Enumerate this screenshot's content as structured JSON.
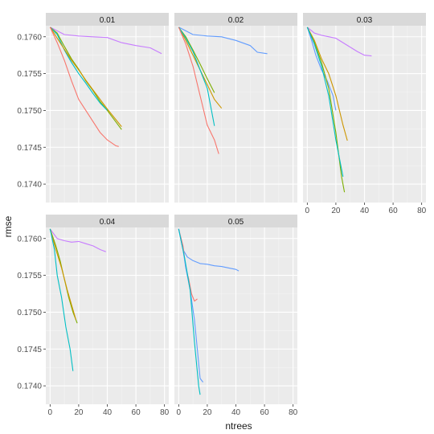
{
  "chart_data": {
    "type": "line",
    "xlabel": "ntrees",
    "ylabel": "rmse",
    "xlim": [
      -3,
      83
    ],
    "ylim": [
      0.17375,
      0.17615
    ],
    "xticks": [
      0,
      20,
      40,
      60,
      80
    ],
    "yticks": [
      0.174,
      0.1745,
      0.175,
      0.1755,
      0.176
    ],
    "ytick_labels": [
      "0.1740",
      "0.1745",
      "0.1750",
      "0.1755",
      "0.1760"
    ],
    "grid": true,
    "legend": "none",
    "facets": [
      {
        "title": "0.01",
        "series": [
          {
            "color": "#C77CFF",
            "points": [
              [
                0,
                0.17613
              ],
              [
                10,
                0.17603
              ],
              [
                20,
                0.17601
              ],
              [
                30,
                0.176
              ],
              [
                40,
                0.17599
              ],
              [
                50,
                0.17592
              ],
              [
                60,
                0.17588
              ],
              [
                70,
                0.17585
              ],
              [
                78,
                0.17577
              ]
            ]
          },
          {
            "color": "#7CAE00",
            "points": [
              [
                0,
                0.17613
              ],
              [
                5,
                0.17605
              ],
              [
                10,
                0.17587
              ],
              [
                15,
                0.1757
              ],
              [
                20,
                0.17556
              ],
              [
                25,
                0.1754
              ],
              [
                30,
                0.17527
              ],
              [
                35,
                0.17512
              ],
              [
                40,
                0.175
              ],
              [
                45,
                0.17487
              ],
              [
                50,
                0.17474
              ]
            ]
          },
          {
            "color": "#00BFC4",
            "points": [
              [
                0,
                0.17613
              ],
              [
                5,
                0.17603
              ],
              [
                10,
                0.17582
              ],
              [
                15,
                0.17565
              ],
              [
                20,
                0.1755
              ],
              [
                25,
                0.17537
              ],
              [
                30,
                0.17523
              ],
              [
                35,
                0.1751
              ],
              [
                40,
                0.175
              ]
            ]
          },
          {
            "color": "#CD9600",
            "points": [
              [
                0,
                0.17613
              ],
              [
                5,
                0.17598
              ],
              [
                10,
                0.17583
              ],
              [
                15,
                0.17568
              ],
              [
                20,
                0.17555
              ],
              [
                25,
                0.17541
              ],
              [
                30,
                0.17528
              ],
              [
                35,
                0.17515
              ],
              [
                40,
                0.17502
              ],
              [
                45,
                0.1749
              ],
              [
                50,
                0.17478
              ]
            ]
          },
          {
            "color": "#F8766D",
            "points": [
              [
                0,
                0.17613
              ],
              [
                5,
                0.17592
              ],
              [
                10,
                0.17568
              ],
              [
                15,
                0.1754
              ],
              [
                20,
                0.17515
              ],
              [
                25,
                0.175
              ],
              [
                30,
                0.17485
              ],
              [
                35,
                0.1747
              ],
              [
                40,
                0.1746
              ],
              [
                46,
                0.17452
              ],
              [
                48,
                0.17451
              ]
            ]
          }
        ]
      },
      {
        "title": "0.02",
        "series": [
          {
            "color": "#619CFF",
            "points": [
              [
                0,
                0.17613
              ],
              [
                10,
                0.17603
              ],
              [
                20,
                0.17601
              ],
              [
                30,
                0.176
              ],
              [
                40,
                0.17595
              ],
              [
                50,
                0.17588
              ],
              [
                55,
                0.17579
              ],
              [
                62,
                0.17577
              ]
            ]
          },
          {
            "color": "#CD9600",
            "points": [
              [
                0,
                0.17613
              ],
              [
                5,
                0.17595
              ],
              [
                10,
                0.17575
              ],
              [
                15,
                0.17555
              ],
              [
                20,
                0.17535
              ],
              [
                25,
                0.17515
              ],
              [
                30,
                0.17503
              ]
            ]
          },
          {
            "color": "#7CAE00",
            "points": [
              [
                0,
                0.17613
              ],
              [
                5,
                0.176
              ],
              [
                10,
                0.17582
              ],
              [
                15,
                0.17563
              ],
              [
                20,
                0.17543
              ],
              [
                25,
                0.17524
              ]
            ]
          },
          {
            "color": "#00BFC4",
            "points": [
              [
                0,
                0.17613
              ],
              [
                5,
                0.17598
              ],
              [
                10,
                0.1758
              ],
              [
                15,
                0.17555
              ],
              [
                20,
                0.1753
              ],
              [
                25,
                0.17479
              ]
            ]
          },
          {
            "color": "#F8766D",
            "points": [
              [
                0,
                0.17613
              ],
              [
                5,
                0.1759
              ],
              [
                10,
                0.1756
              ],
              [
                15,
                0.1752
              ],
              [
                20,
                0.1748
              ],
              [
                25,
                0.1746
              ],
              [
                28,
                0.17441
              ]
            ]
          }
        ]
      },
      {
        "title": "0.03",
        "series": [
          {
            "color": "#C77CFF",
            "points": [
              [
                0,
                0.17613
              ],
              [
                5,
                0.17605
              ],
              [
                10,
                0.17602
              ],
              [
                20,
                0.17598
              ],
              [
                25,
                0.17592
              ],
              [
                35,
                0.1758
              ],
              [
                40,
                0.17575
              ],
              [
                45,
                0.17574
              ]
            ]
          },
          {
            "color": "#619CFF",
            "points": [
              [
                0,
                0.17613
              ],
              [
                3,
                0.17595
              ],
              [
                6,
                0.17575
              ],
              [
                10,
                0.17555
              ],
              [
                14,
                0.1754
              ],
              [
                18,
                0.1752
              ],
              [
                20,
                0.175
              ]
            ]
          },
          {
            "color": "#CD9600",
            "points": [
              [
                0,
                0.17613
              ],
              [
                5,
                0.17595
              ],
              [
                10,
                0.1757
              ],
              [
                15,
                0.1755
              ],
              [
                20,
                0.1752
              ],
              [
                25,
                0.1748
              ],
              [
                28,
                0.17459
              ]
            ]
          },
          {
            "color": "#7CAE00",
            "points": [
              [
                0,
                0.17613
              ],
              [
                5,
                0.17592
              ],
              [
                10,
                0.17565
              ],
              [
                15,
                0.1753
              ],
              [
                20,
                0.1747
              ],
              [
                24,
                0.1741
              ],
              [
                26,
                0.17389
              ]
            ]
          },
          {
            "color": "#00BFC4",
            "points": [
              [
                0,
                0.17613
              ],
              [
                5,
                0.1759
              ],
              [
                10,
                0.1756
              ],
              [
                15,
                0.1752
              ],
              [
                20,
                0.1746
              ],
              [
                25,
                0.1741
              ]
            ]
          }
        ]
      },
      {
        "title": "0.04",
        "series": [
          {
            "color": "#C77CFF",
            "points": [
              [
                0,
                0.17613
              ],
              [
                5,
                0.176
              ],
              [
                10,
                0.17597
              ],
              [
                15,
                0.17595
              ],
              [
                20,
                0.17596
              ],
              [
                25,
                0.17593
              ],
              [
                30,
                0.1759
              ],
              [
                35,
                0.17585
              ],
              [
                39,
                0.17582
              ]
            ]
          },
          {
            "color": "#7CAE00",
            "points": [
              [
                0,
                0.17613
              ],
              [
                4,
                0.1759
              ],
              [
                7,
                0.1757
              ],
              [
                10,
                0.17545
              ],
              [
                13,
                0.1752
              ],
              [
                16,
                0.175
              ],
              [
                19,
                0.17485
              ]
            ]
          },
          {
            "color": "#CD9600",
            "points": [
              [
                0,
                0.17613
              ],
              [
                4,
                0.17585
              ],
              [
                8,
                0.1756
              ],
              [
                12,
                0.1753
              ],
              [
                15,
                0.1751
              ],
              [
                18,
                0.1749
              ]
            ]
          },
          {
            "color": "#00BFC4",
            "points": [
              [
                0,
                0.17613
              ],
              [
                3,
                0.17585
              ],
              [
                5,
                0.1755
              ],
              [
                8,
                0.1752
              ],
              [
                11,
                0.1748
              ],
              [
                14,
                0.1745
              ],
              [
                16,
                0.1742
              ]
            ]
          }
        ]
      },
      {
        "title": "0.05",
        "series": [
          {
            "color": "#619CFF",
            "points": [
              [
                0,
                0.17613
              ],
              [
                3,
                0.17585
              ],
              [
                6,
                0.17575
              ],
              [
                10,
                0.1757
              ],
              [
                15,
                0.17566
              ],
              [
                20,
                0.17565
              ],
              [
                25,
                0.17563
              ],
              [
                30,
                0.17562
              ],
              [
                35,
                0.1756
              ],
              [
                40,
                0.17558
              ],
              [
                42,
                0.17556
              ]
            ]
          },
          {
            "color": "#F8766D",
            "points": [
              [
                0,
                0.17613
              ],
              [
                3,
                0.1759
              ],
              [
                5,
                0.1756
              ],
              [
                7,
                0.17545
              ],
              [
                9,
                0.17525
              ],
              [
                11,
                0.17515
              ],
              [
                13,
                0.17518
              ]
            ]
          },
          {
            "color": "#619CFF",
            "points": [
              [
                0,
                0.17613
              ],
              [
                3,
                0.17585
              ],
              [
                5,
                0.1756
              ],
              [
                8,
                0.1753
              ],
              [
                11,
                0.1749
              ],
              [
                13,
                0.1745
              ],
              [
                15,
                0.1741
              ],
              [
                17,
                0.17405
              ]
            ]
          },
          {
            "color": "#00BFC4",
            "points": [
              [
                0,
                0.17613
              ],
              [
                4,
                0.17575
              ],
              [
                8,
                0.1753
              ],
              [
                11,
                0.1746
              ],
              [
                14,
                0.174
              ],
              [
                15,
                0.17388
              ]
            ]
          }
        ]
      }
    ]
  }
}
